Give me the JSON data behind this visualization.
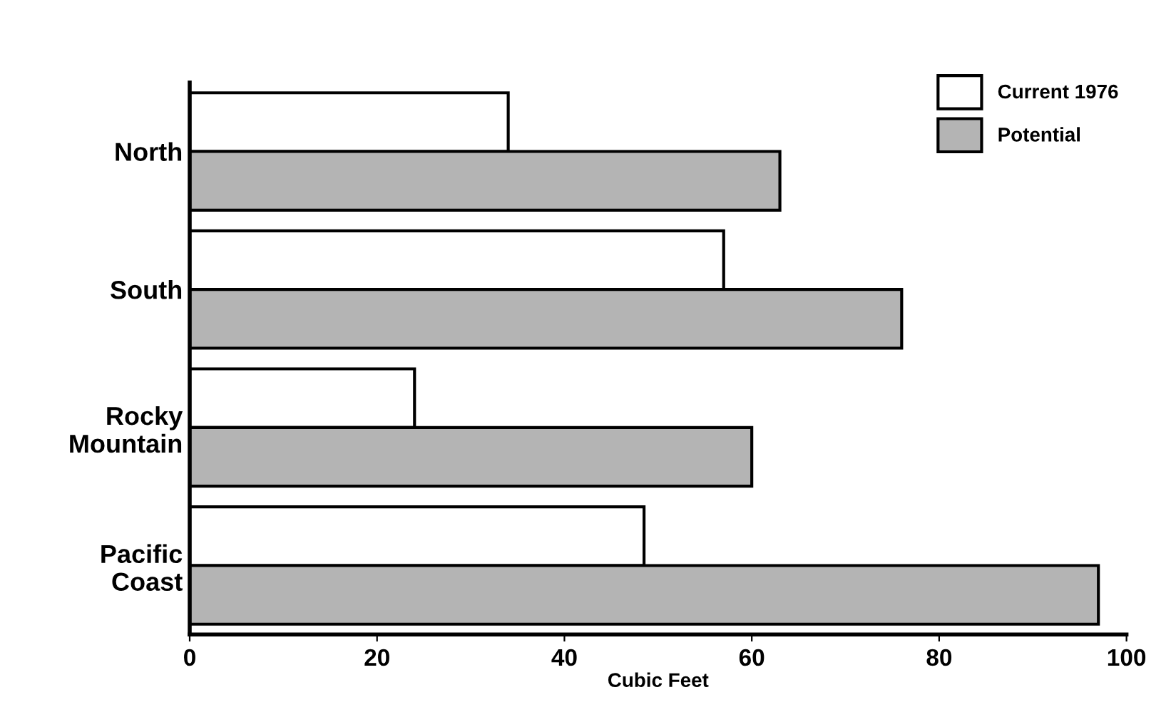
{
  "chart_data": {
    "type": "bar",
    "orientation": "horizontal",
    "xlabel": "Cubic Feet",
    "categories": [
      "North",
      "South",
      "Rocky\nMountain",
      "Pacific\nCoast"
    ],
    "series": [
      {
        "name": "Current 1976",
        "color": "#ffffff",
        "values": [
          34,
          57,
          24,
          48.5
        ]
      },
      {
        "name": "Potential",
        "color": "#b4b4b4",
        "values": [
          63,
          76,
          60,
          97
        ]
      }
    ],
    "xlim": [
      0,
      100
    ],
    "xticks": [
      0,
      20,
      40,
      60,
      80,
      100
    ],
    "grid": false,
    "legend": "top right"
  }
}
